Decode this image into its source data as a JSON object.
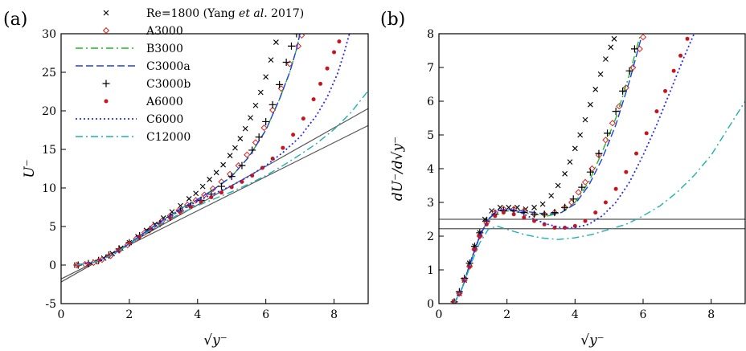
{
  "panels": {
    "a": {
      "label": "(a)"
    },
    "b": {
      "label": "(b)"
    }
  },
  "legend": {
    "entries": [
      {
        "id": "re1800",
        "text_main": "Re=1800 (Yang ",
        "text_italic": "et al.",
        "text_tail": " 2017)",
        "marker": "x",
        "color": "#000000"
      },
      {
        "id": "a3000",
        "text": "A3000",
        "marker": "diamond",
        "color": "#e0201b"
      },
      {
        "id": "b3000",
        "text": "B3000",
        "marker": "dashdot",
        "color": "#22b522"
      },
      {
        "id": "c3000a",
        "text": "C3000a",
        "marker": "dash",
        "color": "#1f3fe0"
      },
      {
        "id": "c3000b",
        "text": "C3000b",
        "marker": "plus",
        "color": "#000000"
      },
      {
        "id": "a6000",
        "text": "A6000",
        "marker": "dot",
        "color": "#c8141e"
      },
      {
        "id": "c6000",
        "text": "C6000",
        "marker": "dotted",
        "color": "#2a2aee"
      },
      {
        "id": "c12000",
        "text": "C12000",
        "marker": "dashdot",
        "color": "#1fb0b0"
      }
    ]
  },
  "chart_data": [
    {
      "type": "line",
      "panel": "a",
      "xlabel": "√y⁻",
      "ylabel": "U⁻",
      "xlim": [
        0,
        9
      ],
      "ylim": [
        -5,
        30
      ],
      "xticks": [
        "0",
        "2",
        "4",
        "6",
        "8"
      ],
      "yticks": [
        "-5",
        "0",
        "5",
        "10",
        "15",
        "20",
        "25",
        "30"
      ],
      "xtick_values": [
        0,
        2,
        4,
        6,
        8
      ],
      "ytick_values": [
        -5,
        0,
        5,
        10,
        15,
        20,
        25,
        30
      ],
      "reference_lines": [
        {
          "x": [
            0,
            9
          ],
          "y": [
            -1.8,
            18.1
          ]
        },
        {
          "x": [
            0,
            9
          ],
          "y": [
            -2.2,
            20.3
          ]
        }
      ],
      "series": [
        {
          "name": "Re=1800 (Yang et al. 2017)",
          "style": "x",
          "color": "#000000",
          "x": [
            0.45,
            0.75,
            1.0,
            1.25,
            1.5,
            1.75,
            2.0,
            2.25,
            2.5,
            2.75,
            3.0,
            3.25,
            3.5,
            3.75,
            3.95,
            4.15,
            4.35,
            4.55,
            4.75,
            4.95,
            5.1,
            5.25,
            5.4,
            5.55,
            5.7,
            5.85,
            6.0,
            6.15,
            6.3
          ],
          "y": [
            0,
            0.1,
            0.4,
            0.9,
            1.5,
            2.2,
            2.9,
            3.7,
            4.5,
            5.3,
            6.1,
            6.9,
            7.7,
            8.6,
            9.3,
            10.2,
            11.1,
            12.0,
            13.0,
            14.2,
            15.2,
            16.4,
            17.7,
            19.1,
            20.7,
            22.4,
            24.4,
            26.6,
            28.9
          ]
        },
        {
          "name": "A3000",
          "style": "diamond",
          "color": "#e0201b",
          "x": [
            0.45,
            0.7,
            0.95,
            1.2,
            1.45,
            1.7,
            1.95,
            2.2,
            2.45,
            2.7,
            2.95,
            3.2,
            3.45,
            3.7,
            3.95,
            4.2,
            4.45,
            4.7,
            4.95,
            5.2,
            5.45,
            5.7,
            5.95,
            6.2,
            6.45,
            6.7,
            6.95,
            7.05
          ],
          "y": [
            0,
            0.1,
            0.3,
            0.7,
            1.2,
            1.9,
            2.6,
            3.4,
            4.2,
            5.0,
            5.7,
            6.4,
            7.1,
            7.8,
            8.4,
            9.1,
            9.9,
            10.8,
            11.8,
            12.9,
            14.3,
            15.9,
            17.8,
            20.1,
            22.9,
            26.1,
            28.4,
            29.8
          ]
        },
        {
          "name": "B3000",
          "style": "dashdot",
          "color": "#22b522",
          "x": [
            0.45,
            1.0,
            1.5,
            2.0,
            2.5,
            3.0,
            3.5,
            4.0,
            4.5,
            5.0,
            5.5,
            6.0,
            6.4,
            6.7,
            6.9,
            7.0
          ],
          "y": [
            0,
            0.4,
            1.3,
            2.8,
            4.4,
            5.9,
            7.3,
            8.5,
            9.9,
            11.5,
            14.0,
            17.5,
            21.5,
            25.0,
            28.0,
            30.0
          ]
        },
        {
          "name": "C3000a",
          "style": "dash",
          "color": "#1f3fe0",
          "x": [
            0.45,
            1.0,
            1.5,
            2.0,
            2.5,
            3.0,
            3.5,
            4.0,
            4.5,
            5.0,
            5.5,
            6.0,
            6.4,
            6.7,
            6.9,
            7.0
          ],
          "y": [
            0,
            0.4,
            1.3,
            2.8,
            4.4,
            5.9,
            7.3,
            8.5,
            9.9,
            11.5,
            14.0,
            17.5,
            21.5,
            25.0,
            28.0,
            30.0
          ]
        },
        {
          "name": "C3000b",
          "style": "plus",
          "color": "#000000",
          "x": [
            0.5,
            0.8,
            1.1,
            1.4,
            1.7,
            2.0,
            2.3,
            2.6,
            2.9,
            3.2,
            3.5,
            3.8,
            4.1,
            4.4,
            4.7,
            5.0,
            5.3,
            5.6,
            5.8,
            6.0,
            6.2,
            6.4,
            6.6,
            6.75,
            6.9
          ],
          "y": [
            0,
            0.2,
            0.6,
            1.3,
            2.1,
            2.9,
            3.8,
            4.6,
            5.4,
            6.2,
            7.0,
            7.7,
            8.4,
            9.2,
            10.2,
            11.5,
            12.9,
            14.9,
            16.6,
            18.6,
            20.8,
            23.4,
            26.3,
            28.4,
            30.0
          ]
        },
        {
          "name": "A6000",
          "style": "dot",
          "color": "#c8141e",
          "x": [
            0.5,
            0.8,
            1.1,
            1.4,
            1.7,
            2.0,
            2.3,
            2.6,
            2.9,
            3.2,
            3.5,
            3.8,
            4.1,
            4.4,
            4.7,
            5.0,
            5.3,
            5.6,
            5.9,
            6.2,
            6.5,
            6.8,
            7.1,
            7.4,
            7.6,
            7.8,
            8.0,
            8.15
          ],
          "y": [
            0,
            0.2,
            0.6,
            1.2,
            2.0,
            2.8,
            3.7,
            4.5,
            5.3,
            6.1,
            6.8,
            7.5,
            8.2,
            8.8,
            9.4,
            10.1,
            10.8,
            11.6,
            12.6,
            13.8,
            15.2,
            16.9,
            19.0,
            21.5,
            23.5,
            25.5,
            27.6,
            29.0
          ]
        },
        {
          "name": "C6000",
          "style": "dotted",
          "color": "#2a2aee",
          "x": [
            0.45,
            1.0,
            1.5,
            2.0,
            2.5,
            3.0,
            3.5,
            4.0,
            4.5,
            5.0,
            5.5,
            6.0,
            6.5,
            7.0,
            7.5,
            7.8,
            8.1,
            8.3,
            8.45
          ],
          "y": [
            0,
            0.4,
            1.3,
            2.7,
            4.3,
            5.8,
            7.1,
            8.3,
            9.3,
            10.3,
            11.5,
            12.9,
            14.6,
            16.6,
            19.5,
            21.8,
            24.8,
            27.6,
            30.0
          ]
        },
        {
          "name": "C12000",
          "style": "dashdot",
          "color": "#1fb0b0",
          "x": [
            0.45,
            1.0,
            1.5,
            2.0,
            2.5,
            3.0,
            3.5,
            4.0,
            4.5,
            5.0,
            5.5,
            6.0,
            6.5,
            7.0,
            7.5,
            8.0,
            8.5,
            9.0
          ],
          "y": [
            0,
            0.4,
            1.3,
            2.7,
            4.2,
            5.5,
            6.7,
            7.7,
            8.6,
            9.5,
            10.5,
            11.6,
            12.9,
            14.3,
            15.8,
            17.6,
            19.8,
            22.6
          ]
        }
      ]
    },
    {
      "type": "line",
      "panel": "b",
      "xlabel": "√y⁻",
      "ylabel": "dU⁻/d√y⁻",
      "xlim": [
        0,
        9
      ],
      "ylim": [
        0,
        8
      ],
      "xticks": [
        "0",
        "2",
        "4",
        "6",
        "8"
      ],
      "yticks": [
        "0",
        "1",
        "2",
        "3",
        "4",
        "5",
        "6",
        "7",
        "8"
      ],
      "xtick_values": [
        0,
        2,
        4,
        6,
        8
      ],
      "ytick_values": [
        0,
        1,
        2,
        3,
        4,
        5,
        6,
        7,
        8
      ],
      "reference_lines": [
        {
          "x": [
            0,
            9
          ],
          "y": [
            2.22,
            2.22
          ]
        },
        {
          "x": [
            0,
            9
          ],
          "y": [
            2.5,
            2.5
          ]
        }
      ],
      "series": [
        {
          "name": "Re=1800 (Yang et al. 2017)",
          "style": "x",
          "color": "#000000",
          "x": [
            0.45,
            0.6,
            0.75,
            0.9,
            1.05,
            1.2,
            1.35,
            1.55,
            1.8,
            2.05,
            2.3,
            2.55,
            2.8,
            3.05,
            3.3,
            3.5,
            3.7,
            3.85,
            4.0,
            4.15,
            4.3,
            4.45,
            4.6,
            4.75,
            4.9,
            5.05,
            5.15
          ],
          "y": [
            0.05,
            0.3,
            0.7,
            1.2,
            1.7,
            2.1,
            2.5,
            2.75,
            2.85,
            2.85,
            2.85,
            2.8,
            2.85,
            2.95,
            3.2,
            3.5,
            3.85,
            4.2,
            4.6,
            5.0,
            5.45,
            5.9,
            6.35,
            6.8,
            7.25,
            7.6,
            7.85
          ]
        },
        {
          "name": "A3000",
          "style": "diamond",
          "color": "#e0201b",
          "x": [
            0.45,
            0.6,
            0.75,
            0.9,
            1.05,
            1.2,
            1.4,
            1.65,
            1.9,
            2.2,
            2.5,
            2.8,
            3.1,
            3.4,
            3.7,
            3.9,
            4.1,
            4.3,
            4.5,
            4.7,
            4.9,
            5.1,
            5.3,
            5.5,
            5.7,
            5.9,
            6.0
          ],
          "y": [
            0.05,
            0.3,
            0.7,
            1.1,
            1.6,
            2.0,
            2.4,
            2.7,
            2.8,
            2.8,
            2.75,
            2.65,
            2.65,
            2.7,
            2.85,
            3.0,
            3.3,
            3.6,
            4.0,
            4.4,
            4.85,
            5.35,
            5.85,
            6.4,
            7.0,
            7.55,
            7.9
          ]
        },
        {
          "name": "B3000",
          "style": "dashdot",
          "color": "#22b522",
          "x": [
            0.45,
            0.7,
            0.95,
            1.2,
            1.45,
            1.7,
            2.0,
            2.4,
            2.8,
            3.2,
            3.6,
            4.0,
            4.4,
            4.8,
            5.2,
            5.6,
            5.9
          ],
          "y": [
            0.0,
            0.5,
            1.3,
            2.0,
            2.5,
            2.7,
            2.75,
            2.7,
            2.65,
            2.6,
            2.7,
            3.0,
            3.6,
            4.5,
            5.5,
            6.8,
            7.9
          ]
        },
        {
          "name": "C3000a",
          "style": "dash",
          "color": "#1f3fe0",
          "x": [
            0.45,
            0.7,
            0.95,
            1.2,
            1.45,
            1.7,
            2.0,
            2.4,
            2.8,
            3.2,
            3.6,
            4.0,
            4.4,
            4.8,
            5.2,
            5.6,
            5.95
          ],
          "y": [
            0.0,
            0.5,
            1.3,
            2.0,
            2.5,
            2.75,
            2.8,
            2.75,
            2.7,
            2.65,
            2.7,
            2.95,
            3.5,
            4.3,
            5.3,
            6.6,
            7.9
          ]
        },
        {
          "name": "C3000b",
          "style": "plus",
          "color": "#000000",
          "x": [
            0.45,
            0.6,
            0.75,
            0.9,
            1.05,
            1.2,
            1.4,
            1.65,
            1.9,
            2.2,
            2.5,
            2.8,
            3.1,
            3.4,
            3.7,
            3.95,
            4.2,
            4.45,
            4.7,
            4.95,
            5.2,
            5.4,
            5.6,
            5.75
          ],
          "y": [
            0.05,
            0.35,
            0.75,
            1.2,
            1.7,
            2.1,
            2.45,
            2.65,
            2.75,
            2.75,
            2.7,
            2.65,
            2.65,
            2.7,
            2.85,
            3.1,
            3.45,
            3.9,
            4.45,
            5.05,
            5.7,
            6.3,
            6.9,
            7.55
          ]
        },
        {
          "name": "A6000",
          "style": "dot",
          "color": "#c8141e",
          "x": [
            0.45,
            0.6,
            0.75,
            0.9,
            1.05,
            1.2,
            1.4,
            1.65,
            1.9,
            2.2,
            2.5,
            2.8,
            3.1,
            3.4,
            3.7,
            4.0,
            4.3,
            4.6,
            4.9,
            5.2,
            5.5,
            5.8,
            6.1,
            6.4,
            6.65,
            6.9,
            7.1,
            7.3
          ],
          "y": [
            0.05,
            0.3,
            0.7,
            1.1,
            1.6,
            2.0,
            2.35,
            2.6,
            2.7,
            2.65,
            2.55,
            2.45,
            2.35,
            2.25,
            2.25,
            2.3,
            2.45,
            2.7,
            3.0,
            3.4,
            3.9,
            4.45,
            5.05,
            5.7,
            6.3,
            6.9,
            7.35,
            7.85
          ]
        },
        {
          "name": "C6000",
          "style": "dotted",
          "color": "#2a2aee",
          "x": [
            0.45,
            0.7,
            0.95,
            1.2,
            1.45,
            1.7,
            2.0,
            2.4,
            2.8,
            3.2,
            3.6,
            4.0,
            4.4,
            4.8,
            5.2,
            5.6,
            6.0,
            6.4,
            6.8,
            7.2,
            7.5
          ],
          "y": [
            0.0,
            0.5,
            1.3,
            2.0,
            2.5,
            2.75,
            2.8,
            2.7,
            2.5,
            2.35,
            2.25,
            2.25,
            2.35,
            2.6,
            3.0,
            3.6,
            4.4,
            5.3,
            6.3,
            7.3,
            8.0
          ]
        },
        {
          "name": "C12000",
          "style": "dashdot",
          "color": "#1fb0b0",
          "x": [
            0.45,
            0.7,
            0.95,
            1.2,
            1.45,
            1.7,
            2.0,
            2.5,
            3.0,
            3.5,
            4.0,
            4.5,
            5.0,
            5.5,
            6.0,
            6.5,
            7.0,
            7.5,
            8.0,
            8.5,
            9.0
          ],
          "y": [
            0.0,
            0.5,
            1.2,
            1.8,
            2.2,
            2.3,
            2.2,
            2.05,
            1.95,
            1.9,
            1.95,
            2.05,
            2.2,
            2.35,
            2.6,
            2.9,
            3.3,
            3.8,
            4.4,
            5.2,
            6.0
          ]
        }
      ]
    }
  ]
}
